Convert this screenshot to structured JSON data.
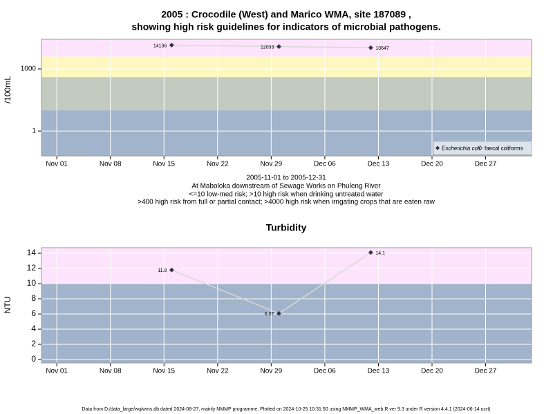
{
  "chart_data": [
    {
      "type": "line",
      "title": "2005 : Crocodile (West) and Marico WMA, site 187089 ,",
      "subtitle": "showing high risk guidelines for indicators of microbial pathogens.",
      "y_label": "/100mL",
      "log_scale": true,
      "grid": true,
      "legend": "lower right",
      "x": [
        "11-16",
        "11-30",
        "12-12"
      ],
      "xlim": [
        "10-30",
        "01-02"
      ],
      "xticks": [
        {
          "value": "11-01",
          "label": "Nov 01"
        },
        {
          "value": "11-08",
          "label": "Nov 08"
        },
        {
          "value": "11-15",
          "label": "Nov 15"
        },
        {
          "value": "11-22",
          "label": "Nov 22"
        },
        {
          "value": "11-29",
          "label": "Nov 29"
        },
        {
          "value": "12-06",
          "label": "Dec 06"
        },
        {
          "value": "12-13",
          "label": "Dec 13"
        },
        {
          "value": "12-20",
          "label": "Dec 20"
        },
        {
          "value": "12-27",
          "label": "Dec 27"
        }
      ],
      "ylim": [
        0.063,
        27000
      ],
      "yticks": [
        1,
        1000
      ],
      "bands": [
        {
          "from": 0.063,
          "to": 10,
          "color": "#a2b4cb"
        },
        {
          "from": 10,
          "to": 400,
          "color": "#c3cbc0"
        },
        {
          "from": 400,
          "to": 4000,
          "color": "#fdf7c0"
        },
        {
          "from": 4000,
          "to": 27000,
          "color": "#fde3fb"
        }
      ],
      "series": [
        {
          "name": "Escherichia coli",
          "color": "#3a3050",
          "values": [
            14136,
            12033,
            10647
          ]
        },
        {
          "name": "faecal coliforms",
          "color": "#3a3050",
          "values": [
            null,
            null,
            null
          ]
        }
      ]
    },
    {
      "type": "line",
      "title": "Turbidity",
      "y_label": "NTU",
      "log_scale": false,
      "grid": true,
      "x": [
        "11-16",
        "11-30",
        "12-12"
      ],
      "xlim": [
        "10-30",
        "01-02"
      ],
      "xticks": [
        {
          "value": "11-01",
          "label": "Nov 01"
        },
        {
          "value": "11-08",
          "label": "Nov 08"
        },
        {
          "value": "11-15",
          "label": "Nov 15"
        },
        {
          "value": "11-22",
          "label": "Nov 22"
        },
        {
          "value": "11-29",
          "label": "Nov 29"
        },
        {
          "value": "12-06",
          "label": "Dec 06"
        },
        {
          "value": "12-13",
          "label": "Dec 13"
        },
        {
          "value": "12-20",
          "label": "Dec 20"
        },
        {
          "value": "12-27",
          "label": "Dec 27"
        }
      ],
      "ylim": [
        -0.45,
        14.73
      ],
      "yticks": [
        0,
        2,
        4,
        6,
        8,
        10,
        12,
        14
      ],
      "bands": [
        {
          "from": -0.45,
          "to": 10,
          "color": "#a2b4cb"
        },
        {
          "from": 10,
          "to": 14.73,
          "color": "#fde3fb"
        }
      ],
      "series": [
        {
          "name": "Turbidity",
          "color": "#3a3050",
          "values": [
            11.8,
            6.07,
            14.1
          ]
        }
      ]
    }
  ],
  "notes": [
    "2005-11-01 to 2005-12-31",
    "At Maboloka downstream of Sewage Works on Phuleng River",
    "<=10 low-med risk; >10 high risk when drinking untreated water",
    ">400 high risk from full or partial contact; >4000 high risk when irrigating crops that are eaten raw"
  ],
  "footer": "Data from D:/data_large/wq/wms.db dated 2024-08-27, mainly NMMP programme. Plotted on 2024-10-25 10:31:50 using NMMP_WMA_web.R ver 9.3 under R version 4.4.1 (2024-06-14 ucrt)"
}
